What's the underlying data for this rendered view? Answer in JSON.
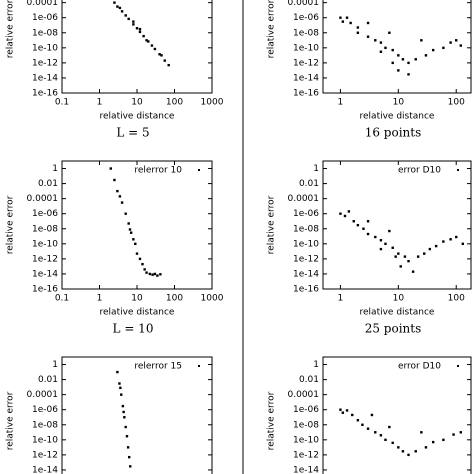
{
  "chart_data": [
    {
      "type": "scatter",
      "xlabel": "relative distance",
      "ylabel": "relative error",
      "caption": "L = 5",
      "logx": true,
      "logy": true,
      "xlim": [
        0.1,
        1000
      ],
      "ylim": [
        1e-16,
        10
      ],
      "xticks": [
        0.1,
        1,
        10,
        100,
        1000
      ],
      "yticks": [
        0.0001,
        {
          "value": 1e-06,
          "label": "1e-06"
        },
        {
          "value": 1e-08,
          "label": "1e-08"
        },
        {
          "value": 1e-10,
          "label": "1e-10"
        },
        {
          "value": 1e-12,
          "label": "1e-12"
        },
        {
          "value": 1e-14,
          "label": "1e-14"
        },
        {
          "value": 1e-16,
          "label": "1e-16"
        }
      ],
      "series": [
        {
          "color": "#000000",
          "x": [
            2.5,
            3,
            4,
            5,
            6,
            8,
            8,
            10,
            12,
            12,
            15,
            18,
            20,
            25,
            30,
            40,
            55,
            70,
            3.5,
            45
          ],
          "y": [
            0.0001,
            3e-05,
            7e-06,
            2e-06,
            7e-07,
            1.3e-07,
            3e-07,
            4e-08,
            1.3e-08,
            3e-08,
            3.6e-09,
            1e-09,
            7e-10,
            2e-10,
            7e-11,
            1.4e-11,
            2e-12,
            5e-13,
            2e-05,
            1e-11
          ]
        }
      ]
    },
    {
      "type": "scatter",
      "xlabel": "relative distance",
      "ylabel": "relative error",
      "caption": "16 points",
      "logx": true,
      "logy": true,
      "xlim": [
        0.5,
        180
      ],
      "ylim": [
        1e-16,
        10
      ],
      "xticks": [
        1,
        10,
        100
      ],
      "yticks": [
        0.0001,
        {
          "value": 1e-06,
          "label": "1e-06"
        },
        {
          "value": 1e-08,
          "label": "1e-08"
        },
        {
          "value": 1e-10,
          "label": "1e-10"
        },
        {
          "value": 1e-12,
          "label": "1e-12"
        },
        {
          "value": 1e-14,
          "label": "1e-14"
        },
        {
          "value": 1e-16,
          "label": "1e-16"
        }
      ],
      "series": [
        {
          "color": "#000000",
          "x": [
            1,
            1.1,
            1.3,
            1.5,
            2,
            2,
            3,
            3,
            4,
            5,
            5,
            6,
            7,
            8,
            8,
            10,
            10,
            12,
            15,
            15,
            20,
            25,
            30,
            40,
            60,
            80,
            100,
            120
          ],
          "y": [
            1e-06,
            3e-07,
            1e-06,
            2e-07,
            5e-08,
            1e-08,
            3e-09,
            2e-07,
            1e-09,
            5e-10,
            3e-11,
            1e-10,
            1e-08,
            5e-11,
            1e-12,
            1e-11,
            1e-13,
            3e-12,
            1e-12,
            3e-14,
            3e-12,
            1e-09,
            1e-11,
            5e-11,
            1e-10,
            5e-10,
            1e-09,
            2e-10
          ]
        }
      ]
    },
    {
      "type": "scatter",
      "xlabel": "relative distance",
      "ylabel": "relative error",
      "caption": "L = 10",
      "logx": true,
      "logy": true,
      "xlim": [
        0.1,
        1000
      ],
      "ylim": [
        1e-16,
        10
      ],
      "xticks": [
        0.1,
        1,
        10,
        100,
        1000
      ],
      "yticks": [
        1,
        0.01,
        0.0001,
        {
          "value": 1e-06,
          "label": "1e-06"
        },
        {
          "value": 1e-08,
          "label": "1e-08"
        },
        {
          "value": 1e-10,
          "label": "1e-10"
        },
        {
          "value": 1e-12,
          "label": "1e-12"
        },
        {
          "value": 1e-14,
          "label": "1e-14"
        },
        {
          "value": 1e-16,
          "label": "1e-16"
        }
      ],
      "series": [
        {
          "name": "relerror 10",
          "color": "#000000",
          "x": [
            2,
            2.5,
            3,
            3.5,
            4,
            5,
            6,
            6.5,
            7,
            8,
            9,
            10,
            12,
            14,
            16,
            18,
            22,
            26,
            30,
            35,
            42
          ],
          "y": [
            1,
            0.03,
            0.001,
            0.0002,
            3e-05,
            1e-06,
            5e-08,
            8e-09,
            3e-09,
            4e-10,
            1e-10,
            5e-12,
            1e-12,
            2e-13,
            4e-14,
            1.5e-14,
            1e-14,
            8e-15,
            1e-14,
            6e-15,
            9e-15
          ]
        }
      ]
    },
    {
      "type": "scatter",
      "xlabel": "relative distance",
      "ylabel": "relative error",
      "caption": "25 points",
      "logx": true,
      "logy": true,
      "xlim": [
        0.5,
        180
      ],
      "ylim": [
        1e-16,
        10
      ],
      "xticks": [
        1,
        10,
        100
      ],
      "yticks": [
        1,
        0.01,
        0.0001,
        {
          "value": 1e-06,
          "label": "1e-06"
        },
        {
          "value": 1e-08,
          "label": "1e-08"
        },
        {
          "value": 1e-10,
          "label": "1e-10"
        },
        {
          "value": 1e-12,
          "label": "1e-12"
        },
        {
          "value": 1e-14,
          "label": "1e-14"
        },
        {
          "value": 1e-16,
          "label": "1e-16"
        }
      ],
      "series": [
        {
          "name": "error D10",
          "color": "#000000",
          "x": [
            1,
            1.2,
            1.4,
            1.7,
            2,
            2.5,
            3,
            3,
            4,
            5,
            5,
            6,
            7,
            8,
            9,
            10,
            11,
            13,
            15,
            18,
            22,
            28,
            35,
            45,
            60,
            80,
            100,
            130
          ],
          "y": [
            1e-06,
            5e-07,
            2e-06,
            1e-07,
            3e-08,
            1e-08,
            2e-09,
            1e-07,
            8e-10,
            3e-10,
            2e-11,
            1e-10,
            5e-09,
            3e-11,
            2e-12,
            5e-12,
            1e-13,
            2e-12,
            5e-13,
            2e-14,
            2e-12,
            5e-12,
            2e-11,
            5e-11,
            2e-10,
            4e-10,
            8e-10,
            1e-10
          ]
        }
      ]
    },
    {
      "type": "scatter",
      "ylabel": "relative error",
      "logx": true,
      "logy": true,
      "xlim": [
        0.1,
        1000
      ],
      "ylim": [
        1e-16,
        10
      ],
      "yticks": [
        1,
        0.01,
        0.0001,
        {
          "value": 1e-06,
          "label": "1e-06"
        },
        {
          "value": 1e-08,
          "label": "1e-08"
        },
        {
          "value": 1e-10,
          "label": "1e-10"
        },
        {
          "value": 1e-12,
          "label": "1e-12"
        },
        {
          "value": 1e-14,
          "label": "1e-14"
        }
      ],
      "series": [
        {
          "name": "relerror 15",
          "color": "#000000",
          "x": [
            3,
            3.4,
            3.6,
            3.8,
            4.2,
            4.4,
            4.6,
            5,
            5.4,
            5.8,
            6.2,
            6.6
          ],
          "y": [
            0.1,
            0.003,
            0.0008,
            0.0001,
            3e-06,
            5e-07,
            1e-07,
            5e-09,
            3e-10,
            1e-11,
            5e-13,
            3e-14
          ]
        }
      ]
    },
    {
      "type": "scatter",
      "ylabel": "relative error",
      "logx": true,
      "logy": true,
      "xlim": [
        0.5,
        180
      ],
      "ylim": [
        1e-16,
        10
      ],
      "yticks": [
        1,
        0.01,
        0.0001,
        {
          "value": 1e-06,
          "label": "1e-06"
        },
        {
          "value": 1e-08,
          "label": "1e-08"
        },
        {
          "value": 1e-10,
          "label": "1e-10"
        },
        {
          "value": 1e-12,
          "label": "1e-12"
        },
        {
          "value": 1e-14,
          "label": "1e-14"
        }
      ],
      "series": [
        {
          "name": "error D10",
          "color": "#000000",
          "x": [
            1,
            1.1,
            1.3,
            1.6,
            2,
            2.4,
            3,
            3.5,
            4,
            5,
            6,
            7,
            8,
            10,
            12,
            15,
            20,
            25,
            30,
            40,
            60,
            90,
            120
          ],
          "y": [
            1e-06,
            4e-07,
            8e-07,
            2e-07,
            4e-08,
            1e-08,
            3e-09,
            2e-07,
            1e-09,
            4e-10,
            1e-10,
            5e-09,
            4e-11,
            1e-11,
            3e-12,
            1e-12,
            3e-12,
            1e-09,
            1e-11,
            5e-11,
            1e-10,
            5e-10,
            1e-09
          ]
        }
      ]
    }
  ]
}
